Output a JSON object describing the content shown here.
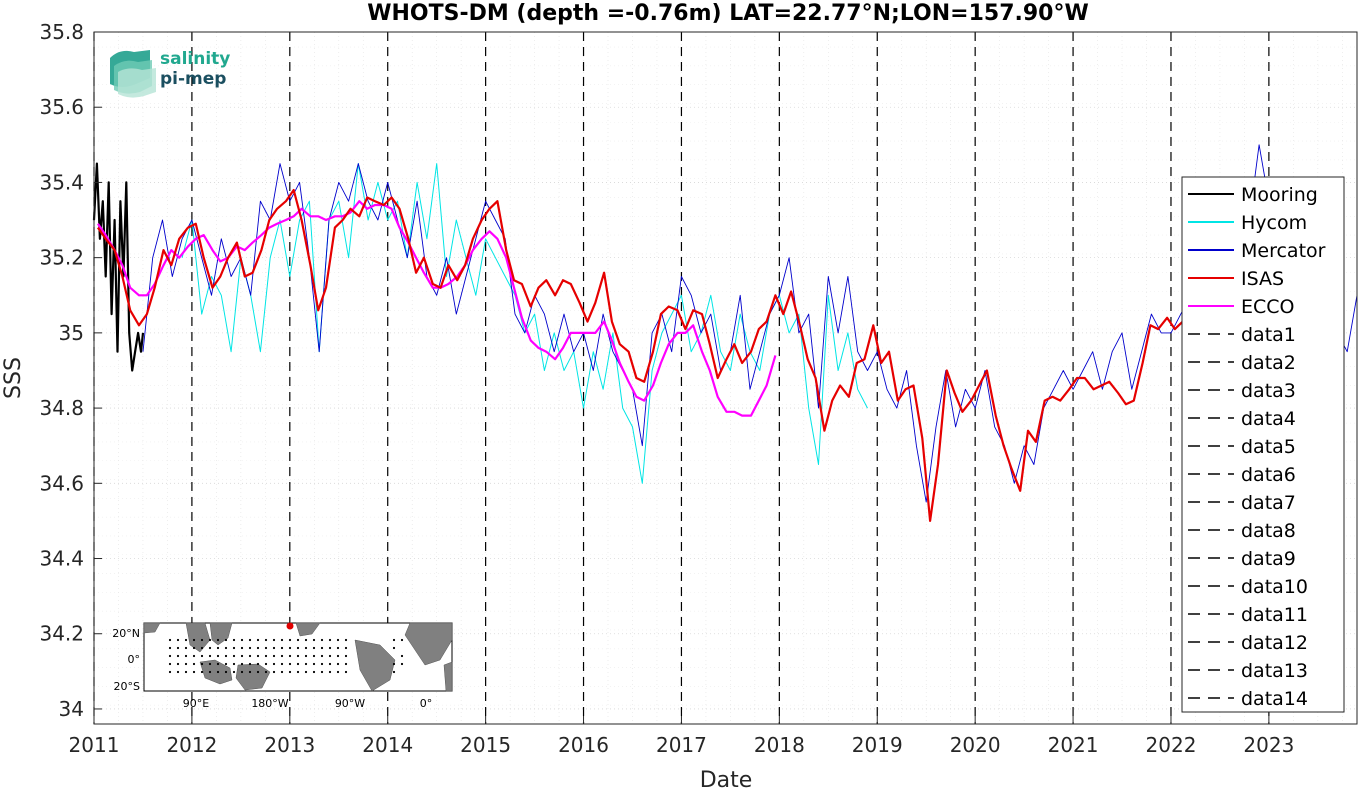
{
  "logo": {
    "line1": "salinity",
    "line2": "pi-mep"
  },
  "inset_map": {
    "lat_labels": [
      "20°N",
      "0°",
      "20°S"
    ],
    "lon_labels": [
      "90°E",
      "180°W",
      "90°W",
      "0°"
    ],
    "ocean_color": "#ffffff",
    "land_color": "#808080",
    "marker_color": "#e00000"
  },
  "chart_data": {
    "type": "line",
    "title": "WHOTS-DM (depth =-0.76m) LAT=22.77°N;LON=157.90°W",
    "xlabel": "Date",
    "ylabel": "SSS",
    "xlim": [
      2011.0,
      2023.9
    ],
    "ylim": [
      33.96,
      35.8
    ],
    "x_ticks": [
      2011,
      2012,
      2013,
      2014,
      2015,
      2016,
      2017,
      2018,
      2019,
      2020,
      2021,
      2022,
      2023
    ],
    "y_ticks": [
      34,
      34.2,
      34.4,
      34.6,
      34.8,
      35,
      35.2,
      35.4,
      35.6,
      35.8
    ],
    "grid": true,
    "legend_position": "right",
    "vertical_dashed_lines": [
      2011.0,
      2012.0,
      2013.0,
      2014.0,
      2015.0,
      2016.0,
      2017.0,
      2018.0,
      2019.0,
      2020.0,
      2021.0,
      2022.0,
      2023.0
    ],
    "series": [
      {
        "name": "Mooring",
        "color": "#000000",
        "width": 2.2,
        "x": [
          2011.0,
          2011.03,
          2011.06,
          2011.09,
          2011.12,
          2011.15,
          2011.18,
          2011.21,
          2011.24,
          2011.27,
          2011.3,
          2011.33,
          2011.36,
          2011.39,
          2011.42,
          2011.45,
          2011.48,
          2011.5
        ],
        "y": [
          35.3,
          35.45,
          35.25,
          35.35,
          35.15,
          35.4,
          35.05,
          35.3,
          34.95,
          35.35,
          35.15,
          35.4,
          35.0,
          34.9,
          34.95,
          35.0,
          34.95,
          35.0
        ]
      },
      {
        "name": "Hycom",
        "color": "#00e5e5",
        "width": 1.0,
        "x": [
          2011.9,
          2012.0,
          2012.1,
          2012.2,
          2012.3,
          2012.4,
          2012.5,
          2012.6,
          2012.7,
          2012.8,
          2012.9,
          2013.0,
          2013.1,
          2013.2,
          2013.3,
          2013.4,
          2013.5,
          2013.6,
          2013.7,
          2013.8,
          2013.9,
          2014.0,
          2014.1,
          2014.2,
          2014.3,
          2014.4,
          2014.5,
          2014.6,
          2014.7,
          2014.8,
          2014.9,
          2015.0,
          2015.1,
          2015.2,
          2015.3,
          2015.4,
          2015.5,
          2015.6,
          2015.7,
          2015.8,
          2015.9,
          2016.0,
          2016.1,
          2016.2,
          2016.3,
          2016.4,
          2016.5,
          2016.6,
          2016.7,
          2016.8,
          2016.9,
          2017.0,
          2017.1,
          2017.2,
          2017.3,
          2017.4,
          2017.5,
          2017.6,
          2017.7,
          2017.8,
          2017.9,
          2018.0,
          2018.1,
          2018.2,
          2018.3,
          2018.4,
          2018.5,
          2018.6,
          2018.7,
          2018.8,
          2018.9
        ],
        "y": [
          35.2,
          35.3,
          35.05,
          35.15,
          35.1,
          34.95,
          35.2,
          35.1,
          34.95,
          35.2,
          35.3,
          35.15,
          35.3,
          35.35,
          34.95,
          35.3,
          35.35,
          35.2,
          35.45,
          35.3,
          35.4,
          35.3,
          35.35,
          35.2,
          35.4,
          35.25,
          35.45,
          35.15,
          35.3,
          35.2,
          35.1,
          35.25,
          35.2,
          35.15,
          35.1,
          35.0,
          35.05,
          34.9,
          35.0,
          34.9,
          34.95,
          34.8,
          34.95,
          34.85,
          35.0,
          34.8,
          34.75,
          34.6,
          34.9,
          35.0,
          35.05,
          35.1,
          34.95,
          35.0,
          35.1,
          34.95,
          34.9,
          35.05,
          34.95,
          34.9,
          35.05,
          35.1,
          35.0,
          35.05,
          34.8,
          34.65,
          35.1,
          34.9,
          35.0,
          34.85,
          34.8
        ]
      },
      {
        "name": "Mercator",
        "color": "#0000cc",
        "width": 0.9,
        "x": [
          2011.5,
          2011.6,
          2011.7,
          2011.8,
          2011.9,
          2012.0,
          2012.1,
          2012.2,
          2012.3,
          2012.4,
          2012.5,
          2012.6,
          2012.7,
          2012.8,
          2012.9,
          2013.0,
          2013.1,
          2013.2,
          2013.3,
          2013.4,
          2013.5,
          2013.6,
          2013.7,
          2013.8,
          2013.9,
          2014.0,
          2014.1,
          2014.2,
          2014.3,
          2014.4,
          2014.5,
          2014.6,
          2014.7,
          2014.8,
          2014.9,
          2015.0,
          2015.1,
          2015.2,
          2015.3,
          2015.4,
          2015.5,
          2015.6,
          2015.7,
          2015.8,
          2015.9,
          2016.0,
          2016.1,
          2016.2,
          2016.3,
          2016.4,
          2016.5,
          2016.6,
          2016.7,
          2016.8,
          2016.9,
          2017.0,
          2017.1,
          2017.2,
          2017.3,
          2017.4,
          2017.5,
          2017.6,
          2017.7,
          2017.8,
          2017.9,
          2018.0,
          2018.1,
          2018.2,
          2018.3,
          2018.4,
          2018.5,
          2018.6,
          2018.7,
          2018.8,
          2018.9,
          2019.0,
          2019.1,
          2019.2,
          2019.3,
          2019.4,
          2019.5,
          2019.6,
          2019.7,
          2019.8,
          2019.9,
          2020.0,
          2020.1,
          2020.2,
          2020.3,
          2020.4,
          2020.5,
          2020.6,
          2020.7,
          2020.8,
          2020.9,
          2021.0,
          2021.1,
          2021.2,
          2021.3,
          2021.4,
          2021.5,
          2021.6,
          2021.7,
          2021.8,
          2021.9,
          2022.0,
          2022.1,
          2022.2,
          2022.3,
          2022.4,
          2022.5,
          2022.6,
          2022.7,
          2022.8,
          2022.9,
          2023.0,
          2023.1,
          2023.2,
          2023.3,
          2023.4,
          2023.5,
          2023.6,
          2023.7,
          2023.8,
          2023.9
        ],
        "y": [
          34.95,
          35.2,
          35.3,
          35.15,
          35.25,
          35.3,
          35.2,
          35.1,
          35.25,
          35.15,
          35.2,
          35.1,
          35.35,
          35.3,
          35.45,
          35.35,
          35.4,
          35.2,
          34.95,
          35.3,
          35.4,
          35.35,
          35.45,
          35.35,
          35.3,
          35.4,
          35.3,
          35.2,
          35.35,
          35.15,
          35.1,
          35.2,
          35.05,
          35.15,
          35.25,
          35.35,
          35.3,
          35.25,
          35.05,
          35.0,
          35.1,
          35.05,
          34.95,
          35.05,
          34.95,
          35.0,
          34.9,
          35.05,
          34.95,
          34.9,
          34.85,
          34.7,
          35.0,
          35.05,
          34.95,
          35.15,
          35.1,
          35.0,
          35.05,
          34.9,
          34.95,
          35.1,
          34.85,
          34.95,
          35.05,
          35.1,
          35.2,
          35.0,
          35.05,
          34.8,
          35.15,
          35.0,
          35.15,
          34.95,
          34.9,
          34.95,
          34.85,
          34.8,
          34.9,
          34.7,
          34.55,
          34.75,
          34.9,
          34.75,
          34.85,
          34.8,
          34.9,
          34.75,
          34.7,
          34.6,
          34.7,
          34.65,
          34.8,
          34.85,
          34.9,
          34.85,
          34.9,
          34.95,
          34.85,
          34.95,
          35.0,
          34.85,
          34.95,
          35.05,
          35.0,
          35.0,
          35.05,
          35.1,
          35.05,
          35.15,
          35.0,
          35.1,
          35.2,
          35.3,
          35.5,
          35.35,
          35.2,
          35.15,
          35.25,
          35.1,
          35.05,
          35.15,
          35.0,
          34.95,
          35.1
        ]
      },
      {
        "name": "ISAS",
        "color": "#e60000",
        "width": 2.2,
        "x": [
          2011.04,
          2011.12,
          2011.21,
          2011.29,
          2011.37,
          2011.46,
          2011.54,
          2011.62,
          2011.71,
          2011.79,
          2011.87,
          2011.96,
          2012.04,
          2012.12,
          2012.21,
          2012.29,
          2012.37,
          2012.46,
          2012.54,
          2012.62,
          2012.71,
          2012.79,
          2012.87,
          2012.96,
          2013.04,
          2013.12,
          2013.21,
          2013.29,
          2013.37,
          2013.46,
          2013.54,
          2013.62,
          2013.71,
          2013.79,
          2013.87,
          2013.96,
          2014.04,
          2014.12,
          2014.21,
          2014.29,
          2014.37,
          2014.46,
          2014.54,
          2014.62,
          2014.71,
          2014.79,
          2014.87,
          2014.96,
          2015.04,
          2015.12,
          2015.21,
          2015.29,
          2015.37,
          2015.46,
          2015.54,
          2015.62,
          2015.71,
          2015.79,
          2015.87,
          2015.96,
          2016.04,
          2016.12,
          2016.21,
          2016.29,
          2016.37,
          2016.46,
          2016.54,
          2016.62,
          2016.71,
          2016.79,
          2016.87,
          2016.96,
          2017.04,
          2017.12,
          2017.21,
          2017.29,
          2017.37,
          2017.46,
          2017.54,
          2017.62,
          2017.71,
          2017.79,
          2017.87,
          2017.96,
          2018.04,
          2018.12,
          2018.21,
          2018.29,
          2018.37,
          2018.46,
          2018.54,
          2018.62,
          2018.71,
          2018.79,
          2018.87,
          2018.96,
          2019.04,
          2019.12,
          2019.21,
          2019.29,
          2019.37,
          2019.46,
          2019.54,
          2019.62,
          2019.71,
          2019.79,
          2019.87,
          2019.96,
          2020.04,
          2020.12,
          2020.21,
          2020.29,
          2020.37,
          2020.46,
          2020.54,
          2020.62,
          2020.71,
          2020.79,
          2020.87,
          2020.96,
          2021.04,
          2021.12,
          2021.21,
          2021.29,
          2021.37,
          2021.46,
          2021.54,
          2021.62,
          2021.71,
          2021.79,
          2021.87,
          2021.96,
          2022.04,
          2022.12
        ],
        "y": [
          35.28,
          35.25,
          35.22,
          35.15,
          35.06,
          35.02,
          35.05,
          35.12,
          35.22,
          35.18,
          35.25,
          35.28,
          35.29,
          35.2,
          35.12,
          35.15,
          35.2,
          35.24,
          35.15,
          35.16,
          35.22,
          35.3,
          35.33,
          35.35,
          35.38,
          35.3,
          35.18,
          35.06,
          35.12,
          35.28,
          35.3,
          35.33,
          35.31,
          35.36,
          35.35,
          35.34,
          35.36,
          35.33,
          35.25,
          35.16,
          35.2,
          35.13,
          35.12,
          35.18,
          35.14,
          35.18,
          35.25,
          35.3,
          35.33,
          35.35,
          35.22,
          35.14,
          35.13,
          35.07,
          35.12,
          35.14,
          35.1,
          35.14,
          35.13,
          35.08,
          35.03,
          35.08,
          35.16,
          35.03,
          34.97,
          34.95,
          34.88,
          34.87,
          34.95,
          35.05,
          35.07,
          35.06,
          35.01,
          35.06,
          35.05,
          34.97,
          34.88,
          34.93,
          34.97,
          34.92,
          34.95,
          35.01,
          35.03,
          35.1,
          35.05,
          35.11,
          35.02,
          34.93,
          34.88,
          34.74,
          34.82,
          34.86,
          34.83,
          34.92,
          34.93,
          35.02,
          34.92,
          34.95,
          34.82,
          34.85,
          34.86,
          34.72,
          34.5,
          34.65,
          34.9,
          34.84,
          34.79,
          34.82,
          34.86,
          34.9,
          34.78,
          34.7,
          34.64,
          34.58,
          34.74,
          34.71,
          34.82,
          34.83,
          34.82,
          34.85,
          34.88,
          34.88,
          34.85,
          34.86,
          34.87,
          34.84,
          34.81,
          34.82,
          34.92,
          35.02,
          35.01,
          35.04,
          35.01,
          35.03
        ]
      },
      {
        "name": "ECCO",
        "color": "#ff00ff",
        "width": 2.2,
        "x": [
          2011.04,
          2011.12,
          2011.21,
          2011.29,
          2011.37,
          2011.46,
          2011.54,
          2011.62,
          2011.71,
          2011.79,
          2011.87,
          2011.96,
          2012.04,
          2012.12,
          2012.21,
          2012.29,
          2012.37,
          2012.46,
          2012.54,
          2012.62,
          2012.71,
          2012.79,
          2012.87,
          2012.96,
          2013.04,
          2013.12,
          2013.21,
          2013.29,
          2013.37,
          2013.46,
          2013.54,
          2013.62,
          2013.71,
          2013.79,
          2013.87,
          2013.96,
          2014.04,
          2014.12,
          2014.21,
          2014.29,
          2014.37,
          2014.46,
          2014.54,
          2014.62,
          2014.71,
          2014.79,
          2014.87,
          2014.96,
          2015.04,
          2015.12,
          2015.21,
          2015.29,
          2015.37,
          2015.46,
          2015.54,
          2015.62,
          2015.71,
          2015.79,
          2015.87,
          2015.96,
          2016.04,
          2016.12,
          2016.21,
          2016.29,
          2016.37,
          2016.46,
          2016.54,
          2016.62,
          2016.71,
          2016.79,
          2016.87,
          2016.96,
          2017.04,
          2017.12,
          2017.21,
          2017.29,
          2017.37,
          2017.46,
          2017.54,
          2017.62,
          2017.71,
          2017.79,
          2017.87,
          2017.96
        ],
        "y": [
          35.29,
          35.26,
          35.22,
          35.18,
          35.12,
          35.1,
          35.1,
          35.13,
          35.18,
          35.22,
          35.2,
          35.23,
          35.25,
          35.26,
          35.22,
          35.19,
          35.2,
          35.23,
          35.22,
          35.24,
          35.26,
          35.28,
          35.29,
          35.3,
          35.31,
          35.33,
          35.31,
          35.31,
          35.3,
          35.31,
          35.31,
          35.32,
          35.35,
          35.33,
          35.34,
          35.34,
          35.33,
          35.28,
          35.24,
          35.2,
          35.16,
          35.12,
          35.12,
          35.13,
          35.15,
          35.18,
          35.22,
          35.25,
          35.27,
          35.25,
          35.2,
          35.12,
          35.04,
          34.98,
          34.96,
          34.95,
          34.93,
          34.96,
          35.0,
          35.0,
          35.0,
          35.0,
          35.03,
          34.98,
          34.92,
          34.87,
          34.83,
          34.82,
          34.86,
          34.92,
          34.97,
          35.0,
          35.0,
          35.02,
          34.95,
          34.9,
          34.83,
          34.79,
          34.79,
          34.78,
          34.78,
          34.82,
          34.86,
          34.94
        ]
      }
    ],
    "legend_entries": [
      {
        "label": "Mooring",
        "color": "#000000",
        "style": "solid"
      },
      {
        "label": "Hycom",
        "color": "#00e5e5",
        "style": "solid"
      },
      {
        "label": "Mercator",
        "color": "#0000cc",
        "style": "solid"
      },
      {
        "label": "ISAS",
        "color": "#e60000",
        "style": "solid"
      },
      {
        "label": "ECCO",
        "color": "#ff00ff",
        "style": "solid"
      },
      {
        "label": "data1",
        "color": "#000000",
        "style": "dashed"
      },
      {
        "label": "data2",
        "color": "#000000",
        "style": "dashed"
      },
      {
        "label": "data3",
        "color": "#000000",
        "style": "dashed"
      },
      {
        "label": "data4",
        "color": "#000000",
        "style": "dashed"
      },
      {
        "label": "data5",
        "color": "#000000",
        "style": "dashed"
      },
      {
        "label": "data6",
        "color": "#000000",
        "style": "dashed"
      },
      {
        "label": "data7",
        "color": "#000000",
        "style": "dashed"
      },
      {
        "label": "data8",
        "color": "#000000",
        "style": "dashed"
      },
      {
        "label": "data9",
        "color": "#000000",
        "style": "dashed"
      },
      {
        "label": "data10",
        "color": "#000000",
        "style": "dashed"
      },
      {
        "label": "data11",
        "color": "#000000",
        "style": "dashed"
      },
      {
        "label": "data12",
        "color": "#000000",
        "style": "dashed"
      },
      {
        "label": "data13",
        "color": "#000000",
        "style": "dashed"
      },
      {
        "label": "data14",
        "color": "#000000",
        "style": "dashed"
      }
    ]
  }
}
